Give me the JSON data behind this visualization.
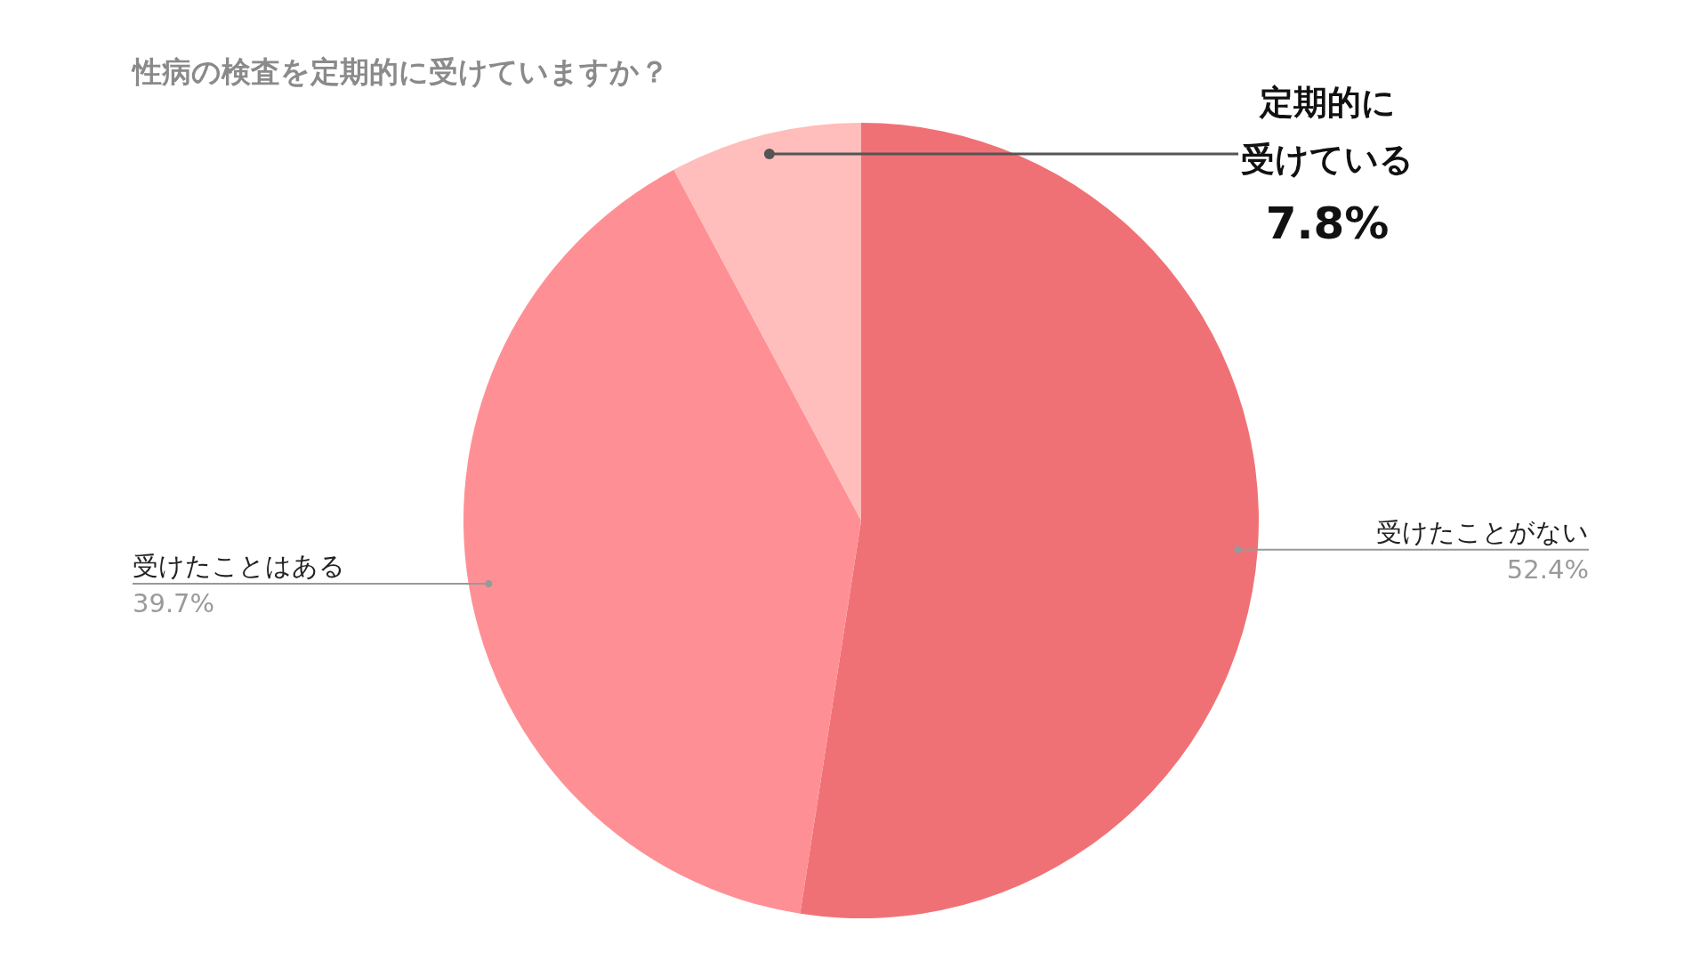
{
  "chart_data": {
    "type": "pie",
    "title": "性病の検査を定期的に受けていますか？",
    "categories": [
      "受けたことがない",
      "受けたことはある",
      "定期的に受けている"
    ],
    "values": [
      52.4,
      39.7,
      7.8
    ],
    "colors": [
      "#f07175",
      "#fe9095",
      "#ffbdbb"
    ],
    "value_labels": [
      "52.4%",
      "39.7%",
      "7.8%"
    ]
  }
}
